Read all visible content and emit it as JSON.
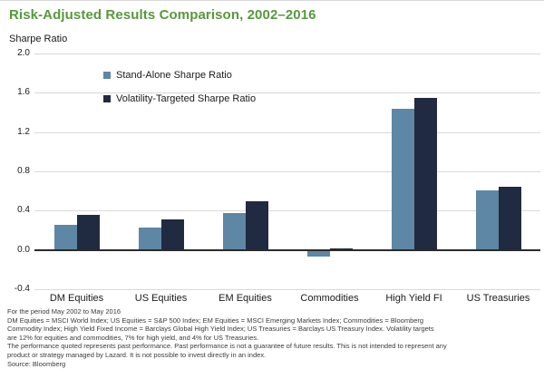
{
  "title": "Risk-Adjusted Results Comparison, 2002–2016",
  "axis_unit_label": "Sharpe Ratio",
  "chart_data": {
    "type": "bar",
    "title": "Risk-Adjusted Results Comparison, 2002–2016",
    "ylabel": "Sharpe Ratio",
    "xlabel": "",
    "ylim": [
      -0.4,
      2.0
    ],
    "yticks": [
      2.0,
      1.6,
      1.2,
      0.8,
      0.4,
      0.0,
      -0.4
    ],
    "grid": true,
    "legend_position": "upper-left-inside",
    "categories": [
      "DM Equities",
      "US Equities",
      "EM Equities",
      "Commodities",
      "High Yield FI",
      "US Treasuries"
    ],
    "series": [
      {
        "name": "Stand-Alone Sharpe Ratio",
        "color": "#5E87A5",
        "values": [
          0.26,
          0.23,
          0.38,
          -0.07,
          1.44,
          0.61
        ]
      },
      {
        "name": "Volatility-Targeted Sharpe Ratio",
        "color": "#202A40",
        "values": [
          0.36,
          0.31,
          0.5,
          0.02,
          1.55,
          0.64
        ]
      }
    ]
  },
  "colors": {
    "title_green": "#56993D",
    "gridline": "#D9D9D9",
    "zero_axis": "#2B2B2B",
    "standalone_bar": "#5E87A5",
    "voltargeted_bar": "#202A40"
  },
  "footnotes": [
    "For the period May 2002 to May 2016",
    "DM Equities = MSCI World Index; US Equities = S&P 500 Index; EM Equities = MSCI Emerging Markets Index; Commodities = Bloomberg",
    "Commodity Index; High Yield Fixed Income = Barclays Global High Yield Index; US Treasuries = Barclays US Treasury Index. Volatility targets",
    "are 12% for equities and commodities, 7% for high yield, and 4% for US Treasuries.",
    "The performance quoted represents past performance. Past performance is not a guarantee of future results. This is not intended to represent any",
    "product or strategy managed by Lazard. It is not possible to invest directly in an index.",
    "Source: Bloomberg"
  ]
}
